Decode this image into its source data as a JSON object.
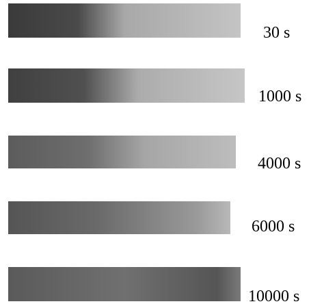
{
  "panels": [
    {
      "label": "30 s"
    },
    {
      "label": "1000 s"
    },
    {
      "label": "4000 s"
    },
    {
      "label": "6000 s"
    },
    {
      "label": "10000 s"
    }
  ]
}
